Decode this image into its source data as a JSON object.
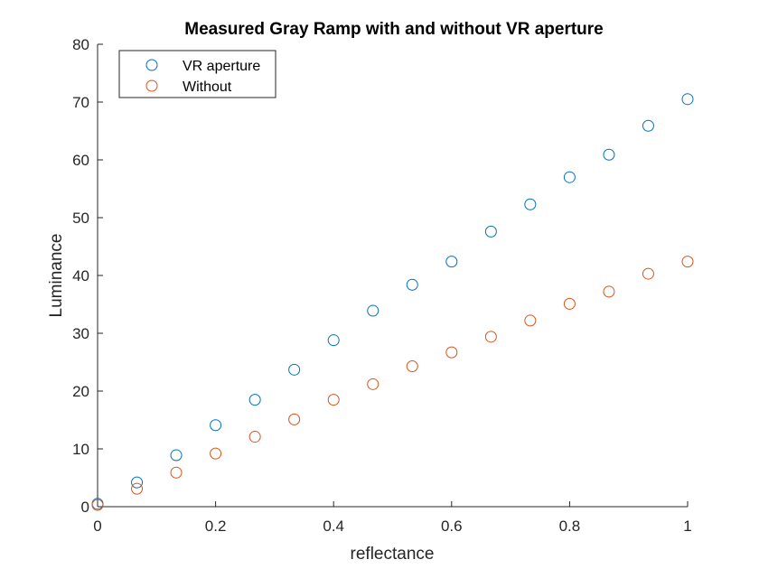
{
  "chart_data": {
    "type": "scatter",
    "title": "Measured Gray Ramp with and without VR aperture",
    "xlabel": "reflectance",
    "ylabel": "Luminance",
    "xlim": [
      0,
      1
    ],
    "ylim": [
      0,
      80
    ],
    "xticks": [
      "0",
      "0.2",
      "0.4",
      "0.6",
      "0.8",
      "1"
    ],
    "yticks": [
      "0",
      "10",
      "20",
      "30",
      "40",
      "50",
      "60",
      "70",
      "80"
    ],
    "grid": false,
    "legend_position": "top-left",
    "x": [
      0,
      0.0667,
      0.1333,
      0.2,
      0.2667,
      0.3333,
      0.4,
      0.4667,
      0.5333,
      0.6,
      0.6667,
      0.7333,
      0.8,
      0.8667,
      0.9333,
      1.0
    ],
    "series": [
      {
        "name": "VR aperture",
        "color": "#0072BD",
        "values": [
          0.5,
          4.2,
          8.9,
          14.1,
          18.5,
          23.7,
          28.8,
          33.9,
          38.4,
          42.4,
          47.6,
          52.3,
          57.0,
          60.9,
          65.9,
          70.5
        ]
      },
      {
        "name": "Without",
        "color": "#D95319",
        "values": [
          0.3,
          3.1,
          5.9,
          9.2,
          12.1,
          15.1,
          18.5,
          21.2,
          24.3,
          26.7,
          29.4,
          32.2,
          35.1,
          37.2,
          40.3,
          42.4
        ]
      }
    ]
  }
}
